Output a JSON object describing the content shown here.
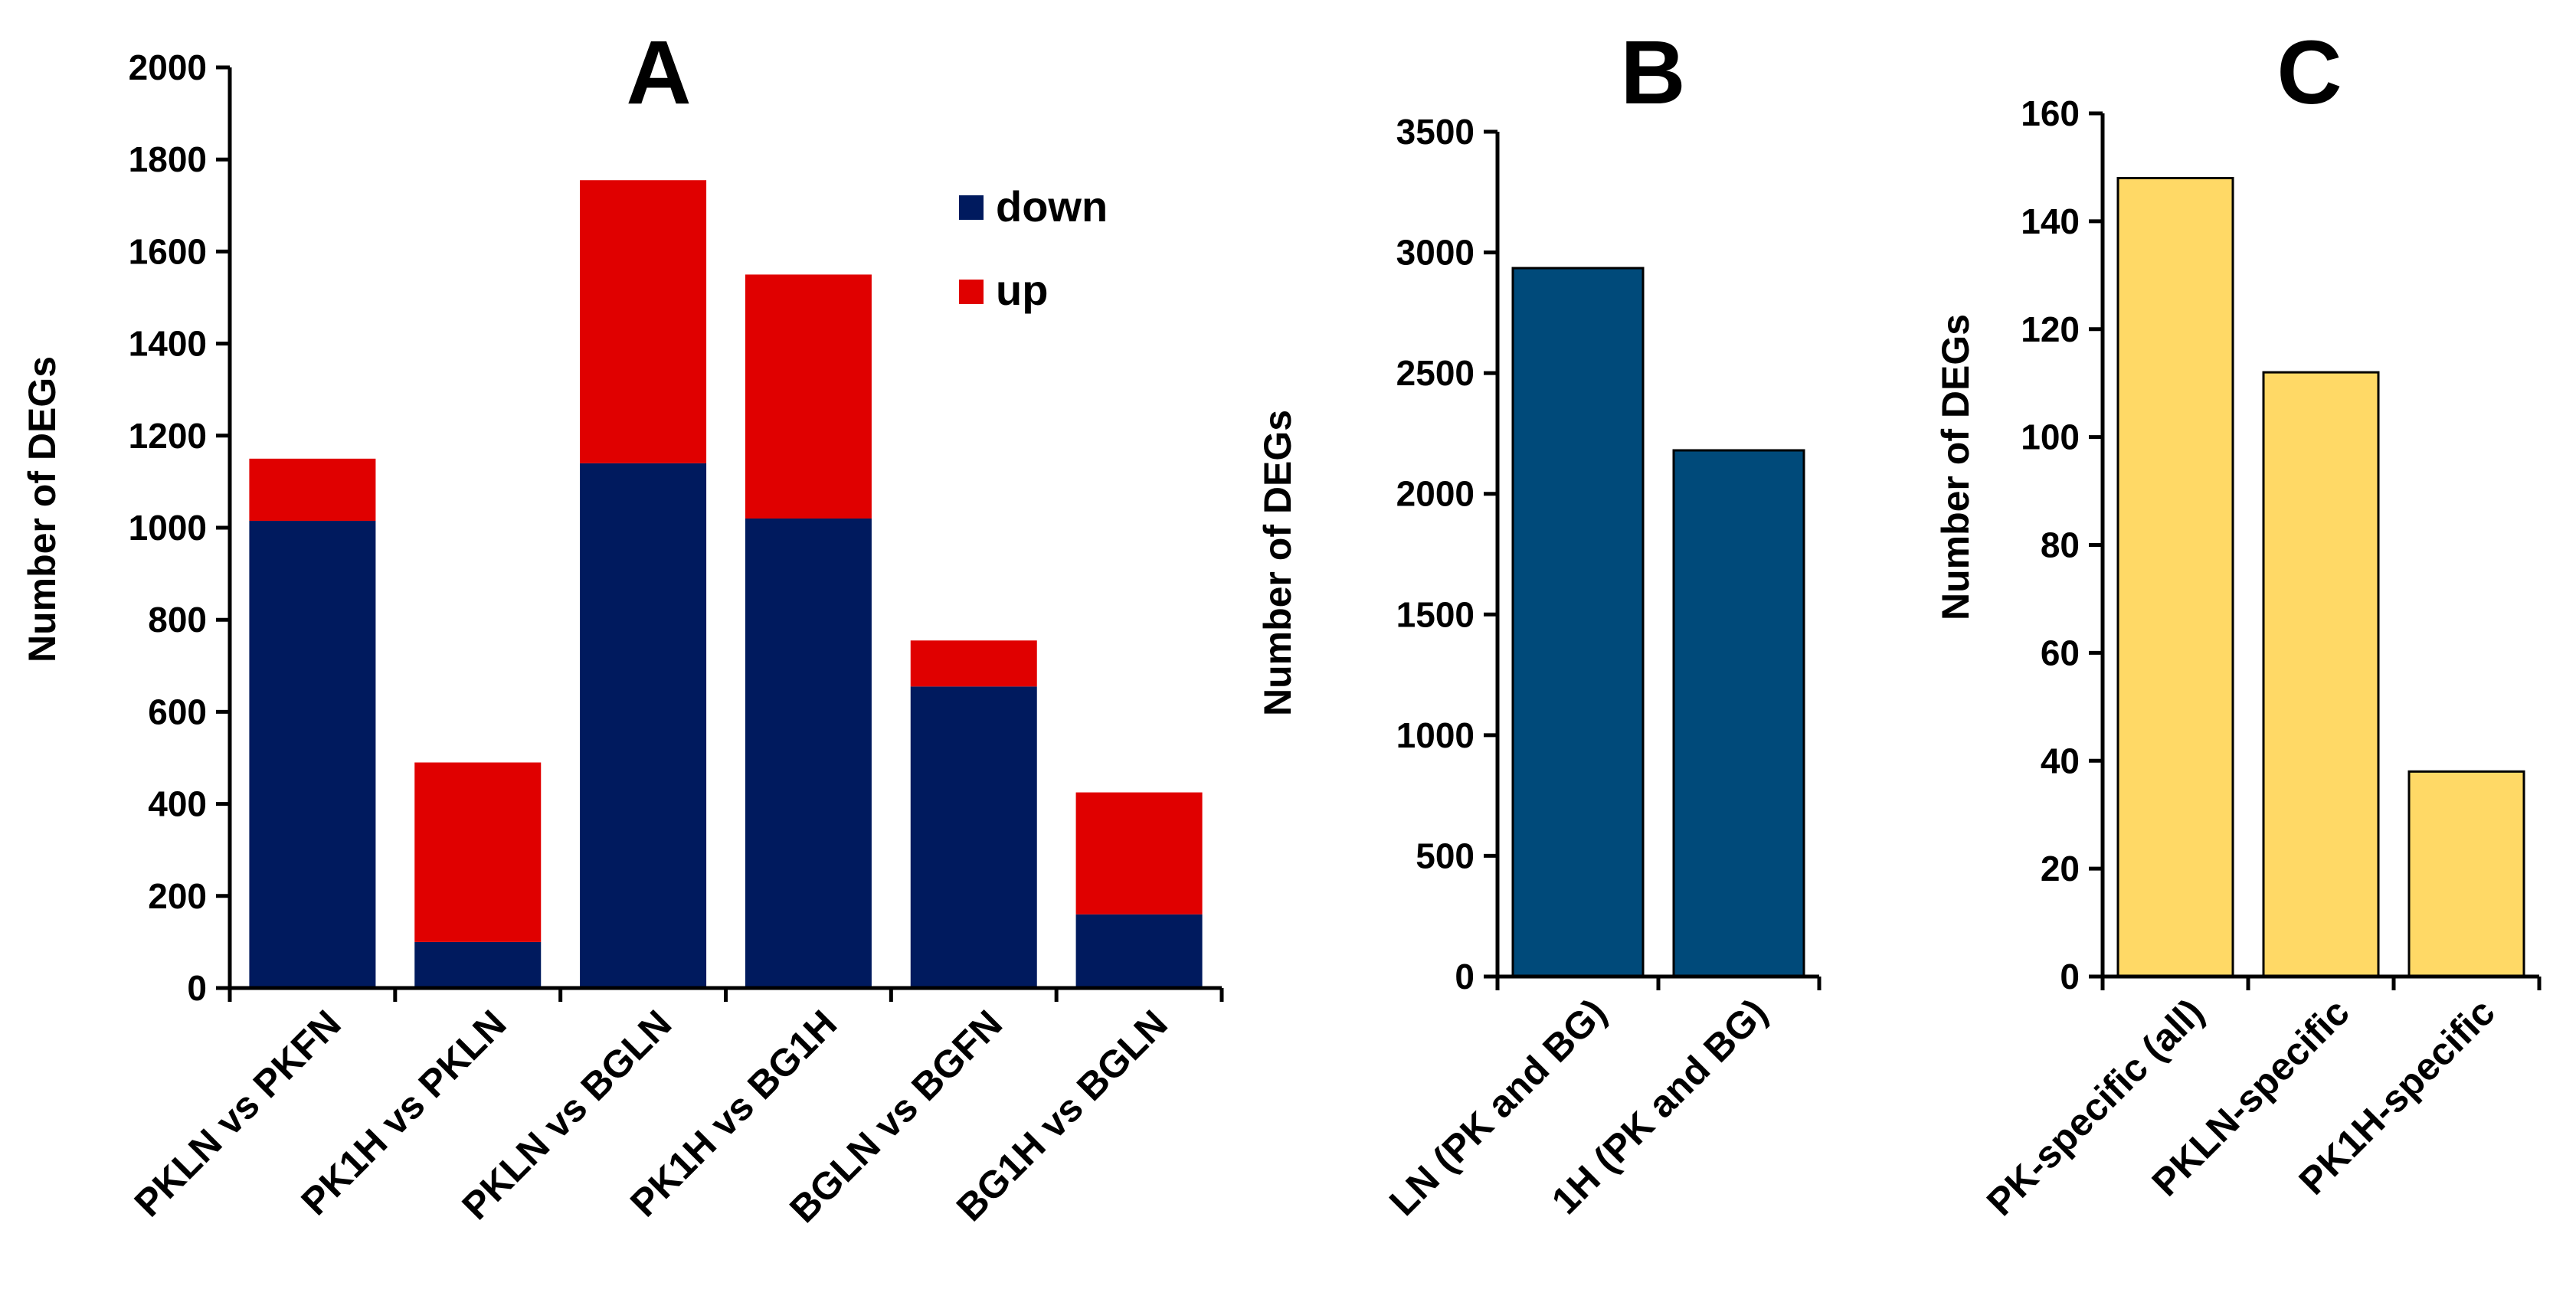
{
  "chart_data": [
    {
      "panel": "A",
      "type": "bar",
      "stacked": true,
      "title": "A",
      "ylabel": "Number of DEGs",
      "xlabel": "",
      "ylim": [
        0,
        2000
      ],
      "yticks": [
        0,
        200,
        400,
        600,
        800,
        1000,
        1200,
        1400,
        1600,
        1800,
        2000
      ],
      "categories": [
        "PKLN vs PKFN",
        "PK1H vs PKLN",
        "PKLN vs BGLN",
        "PK1H vs BG1H",
        "BGLN vs BGFN",
        "BG1H vs BGLN"
      ],
      "series": [
        {
          "name": "down",
          "color": "#001a5e",
          "values": [
            1015,
            100,
            1140,
            1020,
            655,
            160
          ]
        },
        {
          "name": "up",
          "color": "#e00000",
          "values": [
            135,
            390,
            615,
            530,
            100,
            265
          ]
        }
      ],
      "legend": [
        "down",
        "up"
      ],
      "legend_position": "top-right"
    },
    {
      "panel": "B",
      "type": "bar",
      "title": "B",
      "ylabel": "Number of DEGs",
      "xlabel": "",
      "ylim": [
        0,
        3500
      ],
      "yticks": [
        0,
        500,
        1000,
        1500,
        2000,
        2500,
        3000,
        3500
      ],
      "categories": [
        "LN (PK and BG)",
        "1H (PK and BG)"
      ],
      "color": "#004a7a",
      "values": [
        2935,
        2180
      ]
    },
    {
      "panel": "C",
      "type": "bar",
      "title": "C",
      "ylabel": "Number of DEGs",
      "xlabel": "",
      "ylim": [
        0,
        160
      ],
      "yticks": [
        0,
        20,
        40,
        60,
        80,
        100,
        120,
        140,
        160
      ],
      "categories": [
        "PK-specific (all)",
        "PKLN-specific",
        "PK1H-specific"
      ],
      "color": "#ffd966",
      "values": [
        148,
        112,
        38
      ]
    }
  ]
}
